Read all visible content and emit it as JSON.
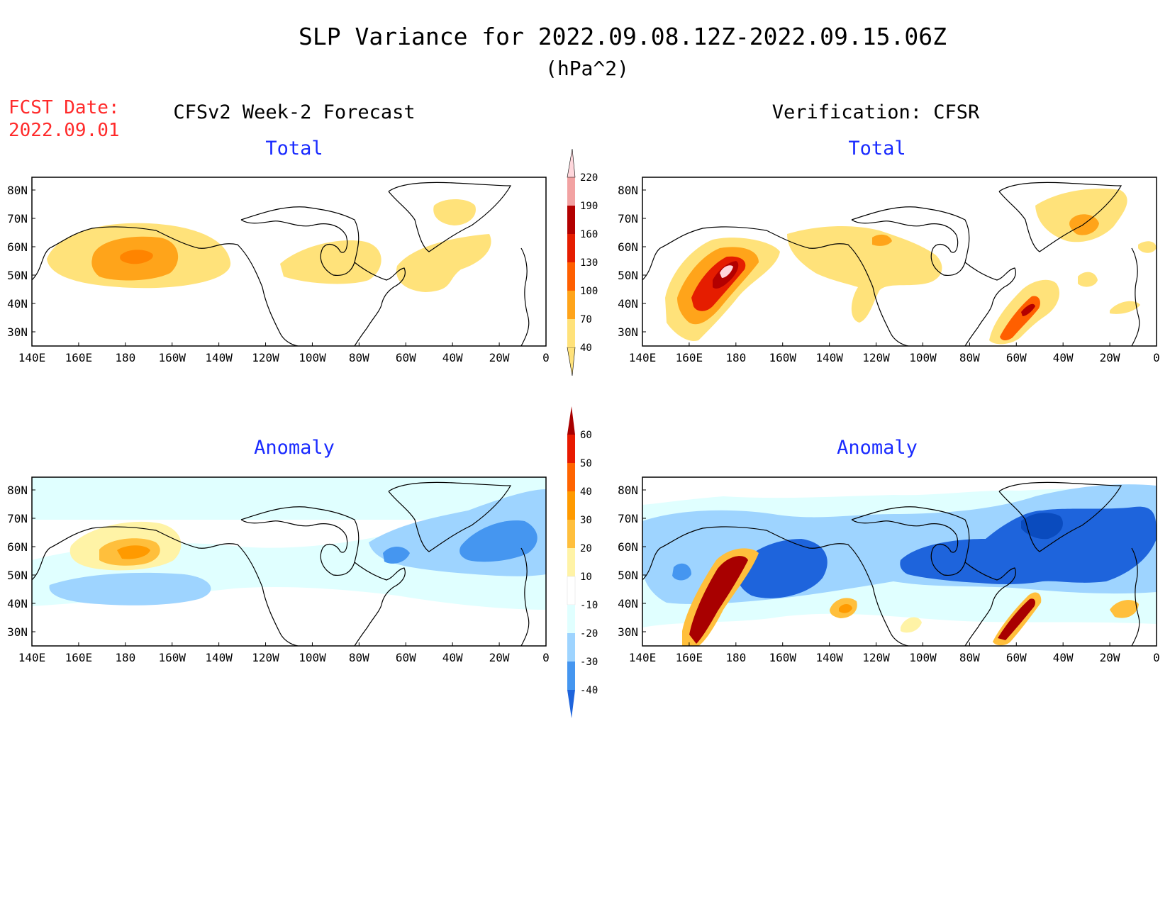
{
  "header": {
    "title": "SLP Variance for 2022.09.08.12Z-2022.09.15.06Z",
    "units": "(hPa^2)",
    "fcst_label": "FCST Date:",
    "fcst_date": "2022.09.01",
    "left_column": "CFSv2 Week-2 Forecast",
    "right_column": "Verification: CFSR"
  },
  "panels": {
    "total_label": "Total",
    "anomaly_label": "Anomaly"
  },
  "axes": {
    "lon_labels": [
      "140E",
      "160E",
      "180",
      "160W",
      "140W",
      "120W",
      "100W",
      "80W",
      "60W",
      "40W",
      "20W",
      "0"
    ],
    "lat_labels": [
      "30N",
      "40N",
      "50N",
      "60N",
      "70N",
      "80N"
    ]
  },
  "colorbars": {
    "total": {
      "levels": [
        "40",
        "70",
        "100",
        "130",
        "160",
        "190",
        "220"
      ],
      "colors": [
        "#ffe27a",
        "#ffa41a",
        "#ff5f00",
        "#e51d00",
        "#b30000",
        "#f2a2a2",
        "#ffd7dc",
        "#fff2f2"
      ]
    },
    "anomaly": {
      "levels": [
        "60",
        "50",
        "40",
        "30",
        "20",
        "10",
        "-10",
        "-20",
        "-30",
        "-40"
      ],
      "colors_top_to_bottom": [
        "#a80000",
        "#e81a00",
        "#ff6400",
        "#ff9a00",
        "#ffbf3c",
        "#fff3a6",
        "#ffffff",
        "#e0ffff",
        "#9ed4ff",
        "#4596f0",
        "#1e64dc",
        "#0a4bbe"
      ]
    }
  }
}
